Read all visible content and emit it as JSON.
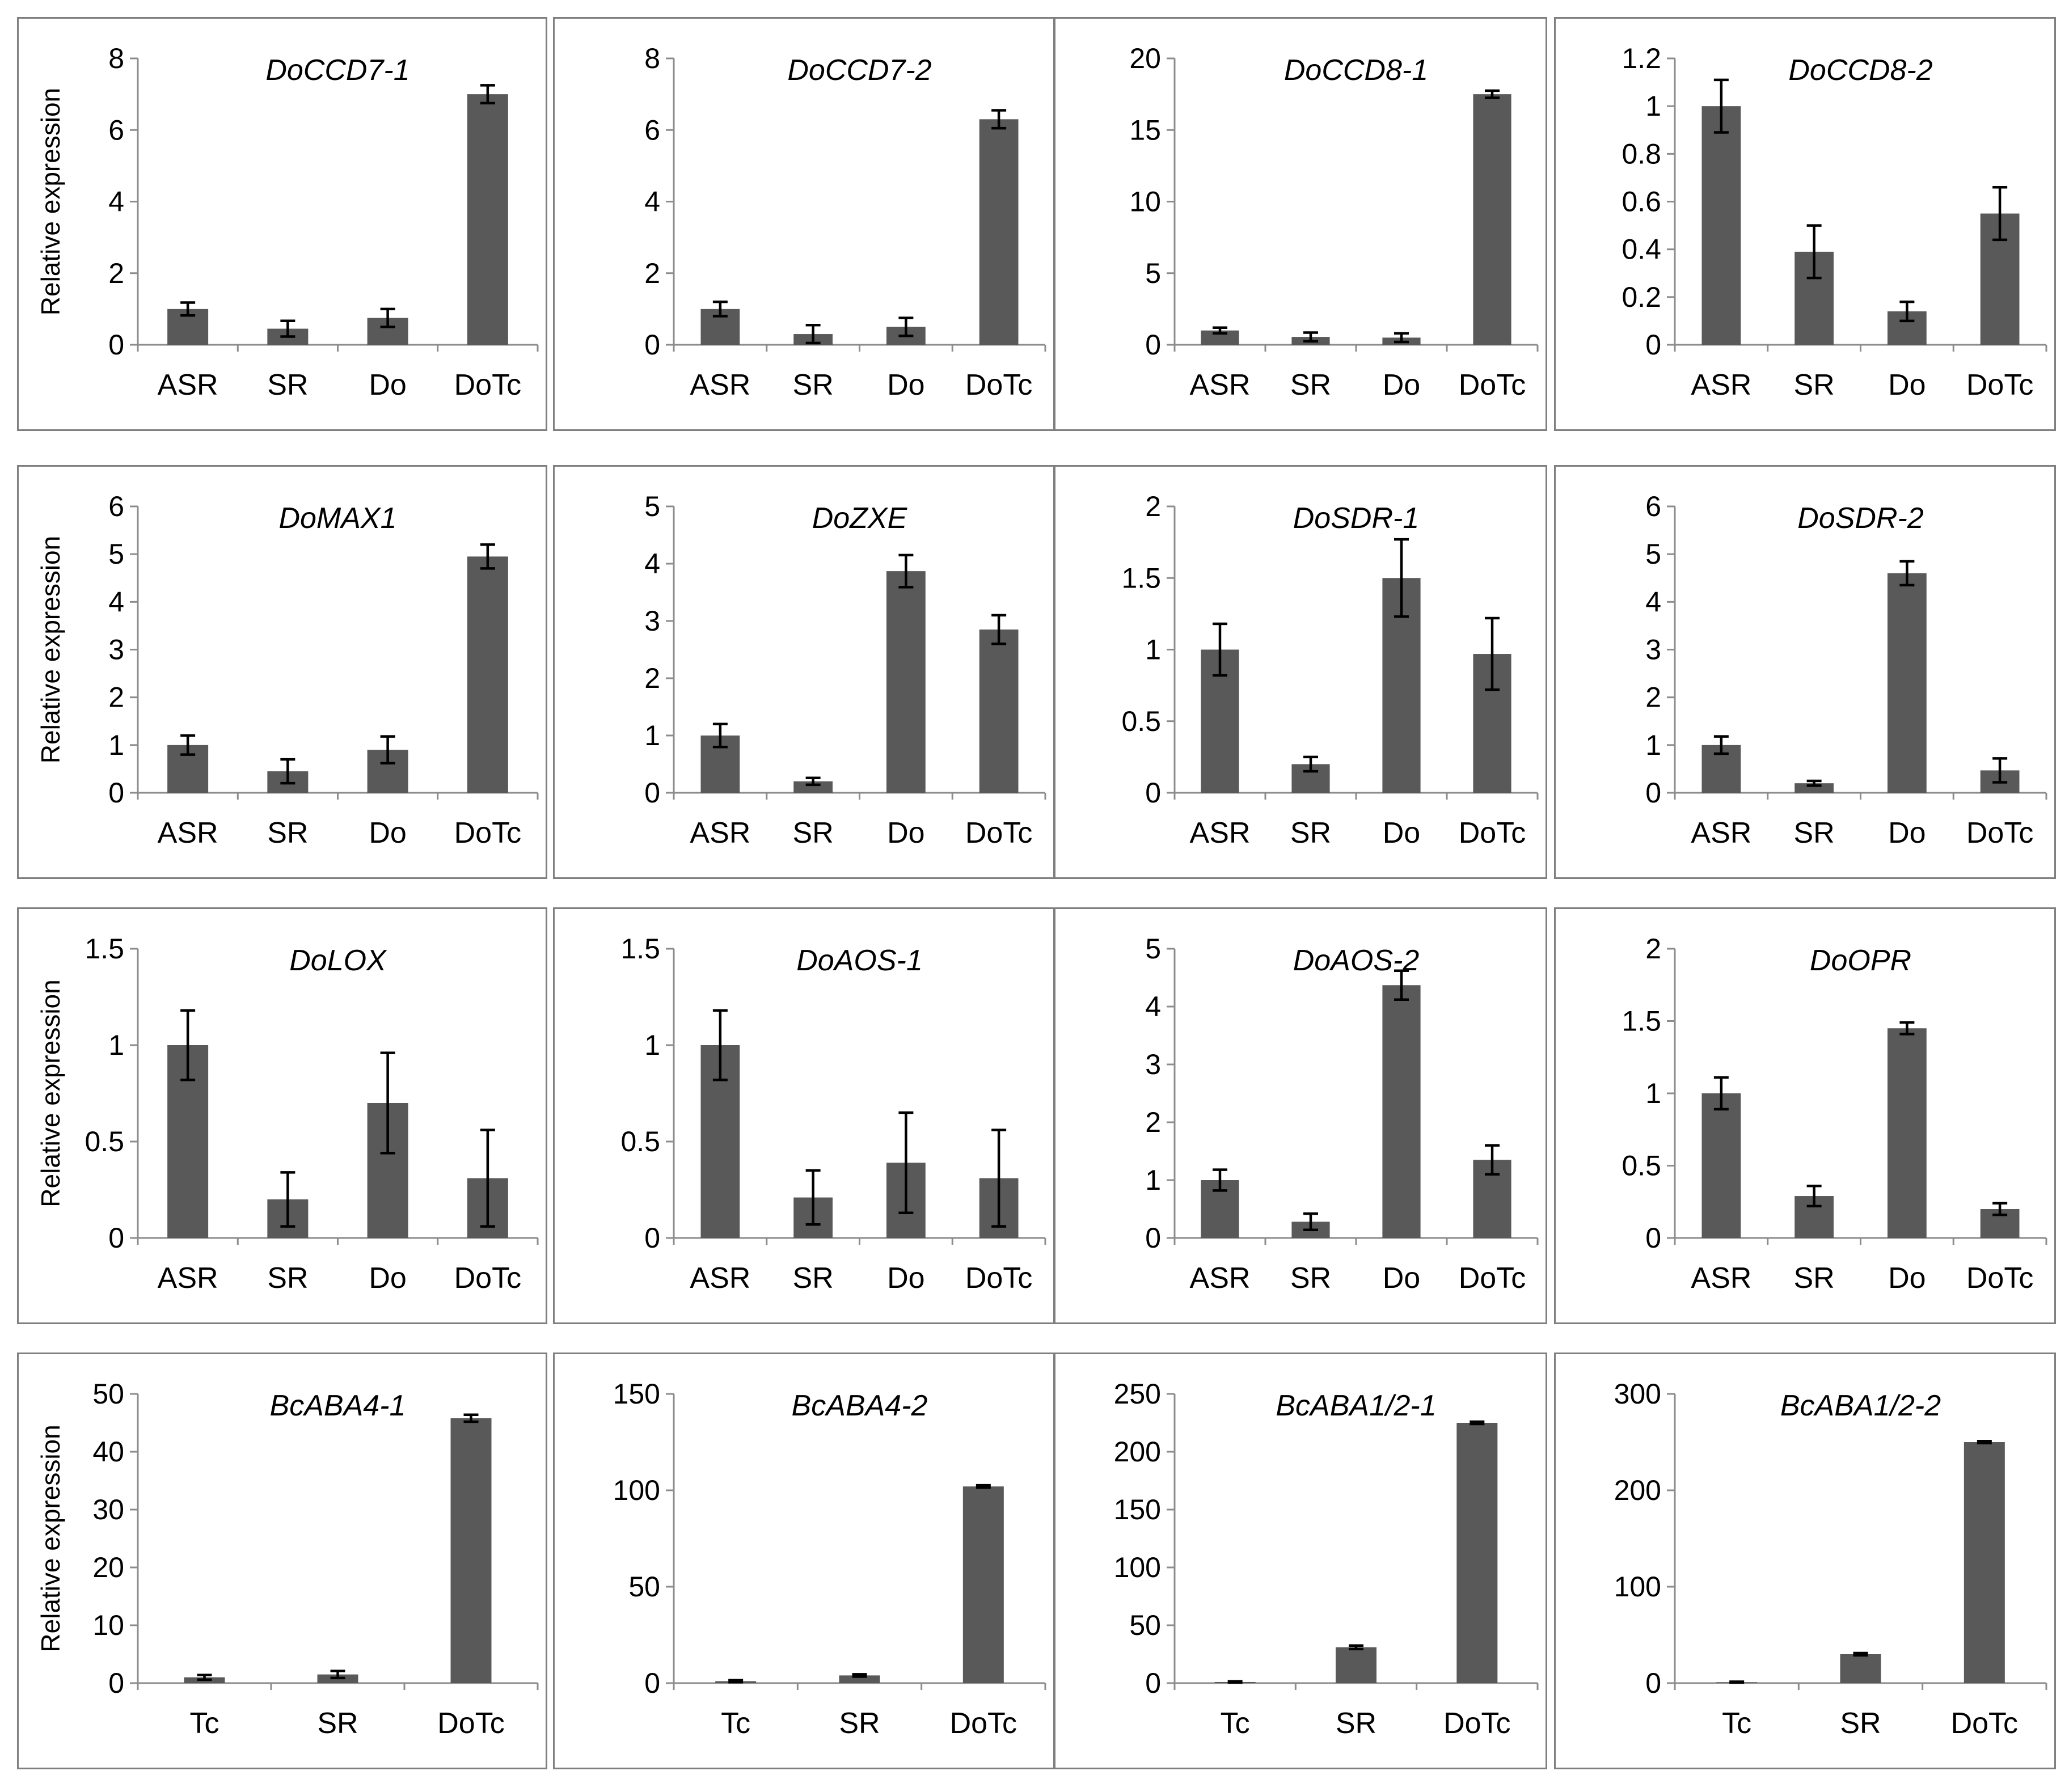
{
  "figure": {
    "ylabel": "Relative expression"
  },
  "chart_data": [
    {
      "type": "bar",
      "title": "DoCCD7-1",
      "categories": [
        "ASR",
        "SR",
        "Do",
        "DoTc"
      ],
      "values": [
        1.0,
        0.45,
        0.75,
        7.0
      ],
      "errors": [
        0.18,
        0.22,
        0.25,
        0.25
      ],
      "ylim": [
        0,
        8
      ],
      "yticks": [
        "0",
        "2",
        "4",
        "6",
        "8"
      ],
      "show_ylabel": true
    },
    {
      "type": "bar",
      "title": "DoCCD7-2",
      "categories": [
        "ASR",
        "SR",
        "Do",
        "DoTc"
      ],
      "values": [
        1.0,
        0.3,
        0.5,
        6.3
      ],
      "errors": [
        0.2,
        0.25,
        0.25,
        0.25
      ],
      "ylim": [
        0,
        8
      ],
      "yticks": [
        "0",
        "2",
        "4",
        "6",
        "8"
      ],
      "show_ylabel": false
    },
    {
      "type": "bar",
      "title": "DoCCD8-1",
      "categories": [
        "ASR",
        "SR",
        "Do",
        "DoTc"
      ],
      "values": [
        1.0,
        0.55,
        0.5,
        17.5
      ],
      "errors": [
        0.2,
        0.3,
        0.3,
        0.25
      ],
      "ylim": [
        0,
        20
      ],
      "yticks": [
        "0",
        "5",
        "10",
        "15",
        "20"
      ],
      "show_ylabel": false
    },
    {
      "type": "bar",
      "title": "DoCCD8-2",
      "categories": [
        "ASR",
        "SR",
        "Do",
        "DoTc"
      ],
      "values": [
        1.0,
        0.39,
        0.14,
        0.55
      ],
      "errors": [
        0.11,
        0.11,
        0.04,
        0.11
      ],
      "ylim": [
        0,
        1.2
      ],
      "yticks": [
        "0",
        "0.2",
        "0.4",
        "0.6",
        "0.8",
        "1",
        "1.2"
      ],
      "show_ylabel": false
    },
    {
      "type": "bar",
      "title": "DoMAX1",
      "categories": [
        "ASR",
        "SR",
        "Do",
        "DoTc"
      ],
      "values": [
        1.0,
        0.45,
        0.9,
        4.95
      ],
      "errors": [
        0.2,
        0.25,
        0.28,
        0.25
      ],
      "ylim": [
        0,
        6
      ],
      "yticks": [
        "0",
        "1",
        "2",
        "3",
        "4",
        "5",
        "6"
      ],
      "show_ylabel": true
    },
    {
      "type": "bar",
      "title": "DoZXE",
      "categories": [
        "ASR",
        "SR",
        "Do",
        "DoTc"
      ],
      "values": [
        1.0,
        0.2,
        3.87,
        2.85
      ],
      "errors": [
        0.2,
        0.06,
        0.28,
        0.25
      ],
      "ylim": [
        0,
        5
      ],
      "yticks": [
        "0",
        "1",
        "2",
        "3",
        "4",
        "5"
      ],
      "show_ylabel": false
    },
    {
      "type": "bar",
      "title": "DoSDR-1",
      "categories": [
        "ASR",
        "SR",
        "Do",
        "DoTc"
      ],
      "values": [
        1.0,
        0.2,
        1.5,
        0.97
      ],
      "errors": [
        0.18,
        0.05,
        0.27,
        0.25
      ],
      "ylim": [
        0,
        2
      ],
      "yticks": [
        "0",
        "0.5",
        "1",
        "1.5",
        "2"
      ],
      "show_ylabel": false
    },
    {
      "type": "bar",
      "title": "DoSDR-2",
      "categories": [
        "ASR",
        "SR",
        "Do",
        "DoTc"
      ],
      "values": [
        1.0,
        0.2,
        4.6,
        0.47
      ],
      "errors": [
        0.18,
        0.05,
        0.25,
        0.25
      ],
      "ylim": [
        0,
        6
      ],
      "yticks": [
        "0",
        "1",
        "2",
        "3",
        "4",
        "5",
        "6"
      ],
      "show_ylabel": false
    },
    {
      "type": "bar",
      "title": "DoLOX",
      "categories": [
        "ASR",
        "SR",
        "Do",
        "DoTc"
      ],
      "values": [
        1.0,
        0.2,
        0.7,
        0.31
      ],
      "errors": [
        0.18,
        0.14,
        0.26,
        0.25
      ],
      "ylim": [
        0,
        1.5
      ],
      "yticks": [
        "0",
        "0.5",
        "1",
        "1.5"
      ],
      "show_ylabel": true
    },
    {
      "type": "bar",
      "title": "DoAOS-1",
      "categories": [
        "ASR",
        "SR",
        "Do",
        "DoTc"
      ],
      "values": [
        1.0,
        0.21,
        0.39,
        0.31
      ],
      "errors": [
        0.18,
        0.14,
        0.26,
        0.25
      ],
      "ylim": [
        0,
        1.5
      ],
      "yticks": [
        "0",
        "0.5",
        "1",
        "1.5"
      ],
      "show_ylabel": false
    },
    {
      "type": "bar",
      "title": "DoAOS-2",
      "categories": [
        "ASR",
        "SR",
        "Do",
        "DoTc"
      ],
      "values": [
        1.0,
        0.28,
        4.37,
        1.35
      ],
      "errors": [
        0.18,
        0.14,
        0.25,
        0.25
      ],
      "ylim": [
        0,
        5
      ],
      "yticks": [
        "0",
        "1",
        "2",
        "3",
        "4",
        "5"
      ],
      "show_ylabel": false
    },
    {
      "type": "bar",
      "title": "DoOPR",
      "categories": [
        "ASR",
        "SR",
        "Do",
        "DoTc"
      ],
      "values": [
        1.0,
        0.29,
        1.45,
        0.2
      ],
      "errors": [
        0.11,
        0.07,
        0.04,
        0.04
      ],
      "ylim": [
        0,
        2
      ],
      "yticks": [
        "0",
        "0.5",
        "1",
        "1.5",
        "2"
      ],
      "show_ylabel": false
    },
    {
      "type": "bar",
      "title": "BcABA4-1",
      "categories": [
        "Tc",
        "SR",
        "DoTc"
      ],
      "values": [
        1.0,
        1.5,
        45.8
      ],
      "errors": [
        0.4,
        0.6,
        0.6
      ],
      "ylim": [
        0,
        50
      ],
      "yticks": [
        "0",
        "10",
        "20",
        "30",
        "40",
        "50"
      ],
      "show_ylabel": true
    },
    {
      "type": "bar",
      "title": "BcABA4-2",
      "categories": [
        "Tc",
        "SR",
        "DoTc"
      ],
      "values": [
        1.0,
        4.0,
        102.0
      ],
      "errors": [
        0.5,
        0.6,
        0.6
      ],
      "ylim": [
        0,
        150
      ],
      "yticks": [
        "0",
        "50",
        "100",
        "150"
      ],
      "show_ylabel": false
    },
    {
      "type": "bar",
      "title": "BcABA1/2-1",
      "categories": [
        "Tc",
        "SR",
        "DoTc"
      ],
      "values": [
        1.0,
        31.0,
        225.0
      ],
      "errors": [
        0.5,
        1.5,
        1.0
      ],
      "ylim": [
        0,
        250
      ],
      "yticks": [
        "0",
        "50",
        "100",
        "150",
        "200",
        "250"
      ],
      "show_ylabel": false
    },
    {
      "type": "bar",
      "title": "BcABA1/2-2",
      "categories": [
        "Tc",
        "SR",
        "DoTc"
      ],
      "values": [
        1.0,
        30.0,
        250.0
      ],
      "errors": [
        0.5,
        1.2,
        1.0
      ],
      "ylim": [
        0,
        300
      ],
      "yticks": [
        "0",
        "100",
        "200",
        "300"
      ],
      "show_ylabel": false
    }
  ]
}
